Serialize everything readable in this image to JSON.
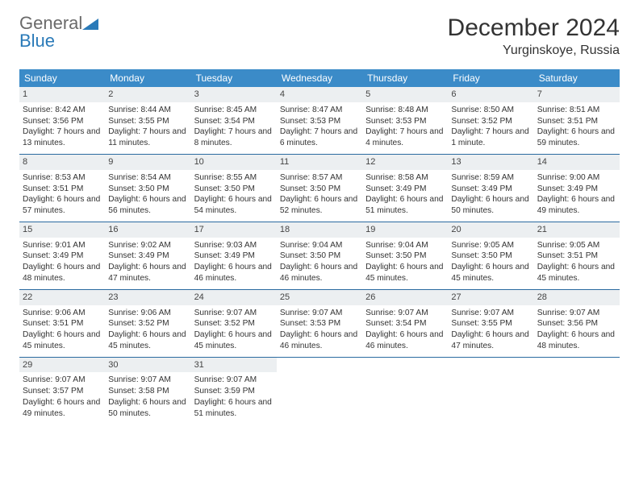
{
  "brand": {
    "part1": "General",
    "part2": "Blue"
  },
  "title": "December 2024",
  "location": "Yurginskoye, Russia",
  "colors": {
    "header_bg": "#3b8bc8",
    "header_text": "#ffffff",
    "daynum_bg": "#eceff1",
    "rule": "#2a6aa0",
    "brand_gray": "#6a6a6a",
    "brand_blue": "#2a7ab8"
  },
  "day_names": [
    "Sunday",
    "Monday",
    "Tuesday",
    "Wednesday",
    "Thursday",
    "Friday",
    "Saturday"
  ],
  "weeks": [
    [
      {
        "n": "1",
        "sr": "Sunrise: 8:42 AM",
        "ss": "Sunset: 3:56 PM",
        "dl": "Daylight: 7 hours and 13 minutes."
      },
      {
        "n": "2",
        "sr": "Sunrise: 8:44 AM",
        "ss": "Sunset: 3:55 PM",
        "dl": "Daylight: 7 hours and 11 minutes."
      },
      {
        "n": "3",
        "sr": "Sunrise: 8:45 AM",
        "ss": "Sunset: 3:54 PM",
        "dl": "Daylight: 7 hours and 8 minutes."
      },
      {
        "n": "4",
        "sr": "Sunrise: 8:47 AM",
        "ss": "Sunset: 3:53 PM",
        "dl": "Daylight: 7 hours and 6 minutes."
      },
      {
        "n": "5",
        "sr": "Sunrise: 8:48 AM",
        "ss": "Sunset: 3:53 PM",
        "dl": "Daylight: 7 hours and 4 minutes."
      },
      {
        "n": "6",
        "sr": "Sunrise: 8:50 AM",
        "ss": "Sunset: 3:52 PM",
        "dl": "Daylight: 7 hours and 1 minute."
      },
      {
        "n": "7",
        "sr": "Sunrise: 8:51 AM",
        "ss": "Sunset: 3:51 PM",
        "dl": "Daylight: 6 hours and 59 minutes."
      }
    ],
    [
      {
        "n": "8",
        "sr": "Sunrise: 8:53 AM",
        "ss": "Sunset: 3:51 PM",
        "dl": "Daylight: 6 hours and 57 minutes."
      },
      {
        "n": "9",
        "sr": "Sunrise: 8:54 AM",
        "ss": "Sunset: 3:50 PM",
        "dl": "Daylight: 6 hours and 56 minutes."
      },
      {
        "n": "10",
        "sr": "Sunrise: 8:55 AM",
        "ss": "Sunset: 3:50 PM",
        "dl": "Daylight: 6 hours and 54 minutes."
      },
      {
        "n": "11",
        "sr": "Sunrise: 8:57 AM",
        "ss": "Sunset: 3:50 PM",
        "dl": "Daylight: 6 hours and 52 minutes."
      },
      {
        "n": "12",
        "sr": "Sunrise: 8:58 AM",
        "ss": "Sunset: 3:49 PM",
        "dl": "Daylight: 6 hours and 51 minutes."
      },
      {
        "n": "13",
        "sr": "Sunrise: 8:59 AM",
        "ss": "Sunset: 3:49 PM",
        "dl": "Daylight: 6 hours and 50 minutes."
      },
      {
        "n": "14",
        "sr": "Sunrise: 9:00 AM",
        "ss": "Sunset: 3:49 PM",
        "dl": "Daylight: 6 hours and 49 minutes."
      }
    ],
    [
      {
        "n": "15",
        "sr": "Sunrise: 9:01 AM",
        "ss": "Sunset: 3:49 PM",
        "dl": "Daylight: 6 hours and 48 minutes."
      },
      {
        "n": "16",
        "sr": "Sunrise: 9:02 AM",
        "ss": "Sunset: 3:49 PM",
        "dl": "Daylight: 6 hours and 47 minutes."
      },
      {
        "n": "17",
        "sr": "Sunrise: 9:03 AM",
        "ss": "Sunset: 3:49 PM",
        "dl": "Daylight: 6 hours and 46 minutes."
      },
      {
        "n": "18",
        "sr": "Sunrise: 9:04 AM",
        "ss": "Sunset: 3:50 PM",
        "dl": "Daylight: 6 hours and 46 minutes."
      },
      {
        "n": "19",
        "sr": "Sunrise: 9:04 AM",
        "ss": "Sunset: 3:50 PM",
        "dl": "Daylight: 6 hours and 45 minutes."
      },
      {
        "n": "20",
        "sr": "Sunrise: 9:05 AM",
        "ss": "Sunset: 3:50 PM",
        "dl": "Daylight: 6 hours and 45 minutes."
      },
      {
        "n": "21",
        "sr": "Sunrise: 9:05 AM",
        "ss": "Sunset: 3:51 PM",
        "dl": "Daylight: 6 hours and 45 minutes."
      }
    ],
    [
      {
        "n": "22",
        "sr": "Sunrise: 9:06 AM",
        "ss": "Sunset: 3:51 PM",
        "dl": "Daylight: 6 hours and 45 minutes."
      },
      {
        "n": "23",
        "sr": "Sunrise: 9:06 AM",
        "ss": "Sunset: 3:52 PM",
        "dl": "Daylight: 6 hours and 45 minutes."
      },
      {
        "n": "24",
        "sr": "Sunrise: 9:07 AM",
        "ss": "Sunset: 3:52 PM",
        "dl": "Daylight: 6 hours and 45 minutes."
      },
      {
        "n": "25",
        "sr": "Sunrise: 9:07 AM",
        "ss": "Sunset: 3:53 PM",
        "dl": "Daylight: 6 hours and 46 minutes."
      },
      {
        "n": "26",
        "sr": "Sunrise: 9:07 AM",
        "ss": "Sunset: 3:54 PM",
        "dl": "Daylight: 6 hours and 46 minutes."
      },
      {
        "n": "27",
        "sr": "Sunrise: 9:07 AM",
        "ss": "Sunset: 3:55 PM",
        "dl": "Daylight: 6 hours and 47 minutes."
      },
      {
        "n": "28",
        "sr": "Sunrise: 9:07 AM",
        "ss": "Sunset: 3:56 PM",
        "dl": "Daylight: 6 hours and 48 minutes."
      }
    ],
    [
      {
        "n": "29",
        "sr": "Sunrise: 9:07 AM",
        "ss": "Sunset: 3:57 PM",
        "dl": "Daylight: 6 hours and 49 minutes."
      },
      {
        "n": "30",
        "sr": "Sunrise: 9:07 AM",
        "ss": "Sunset: 3:58 PM",
        "dl": "Daylight: 6 hours and 50 minutes."
      },
      {
        "n": "31",
        "sr": "Sunrise: 9:07 AM",
        "ss": "Sunset: 3:59 PM",
        "dl": "Daylight: 6 hours and 51 minutes."
      },
      null,
      null,
      null,
      null
    ]
  ]
}
